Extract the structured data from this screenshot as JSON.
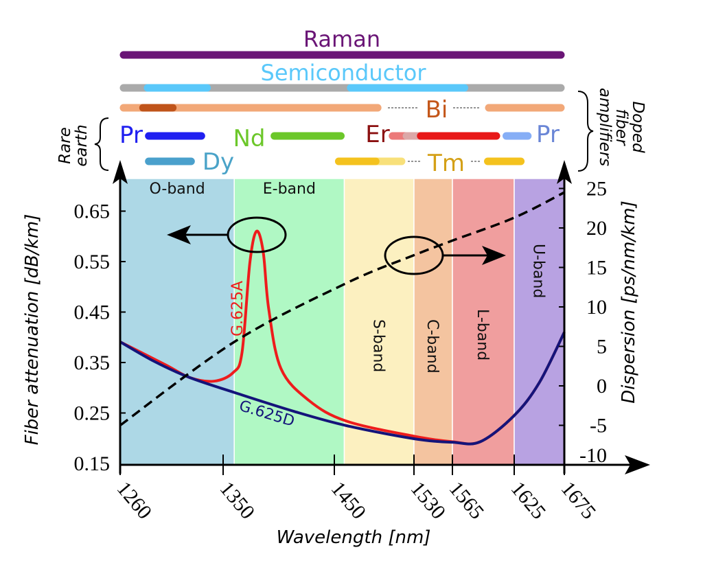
{
  "chart_data": {
    "type": "line",
    "xlabel": "Wavelength [nm]",
    "ylabel": "Fiber attenuation [dB/km]",
    "y2label": "Dispersion [ps/nm/km]",
    "x_ticks": [
      1260,
      1350,
      1450,
      1530,
      1565,
      1625,
      1675
    ],
    "x_tick_labels": [
      "1260",
      "1350",
      "1450",
      "1530",
      "1565",
      "1625",
      "1675"
    ],
    "x_scale": "non-uniform (ticks as printed)",
    "ylim": [
      0.15,
      0.7
    ],
    "y_ticks": [
      0.15,
      0.25,
      0.35,
      0.45,
      0.55,
      0.65
    ],
    "y_tick_labels": [
      "0.15",
      "0.25",
      "0.35",
      "0.45",
      "0.55",
      "0.65"
    ],
    "y2lim": [
      -10,
      26
    ],
    "y2_ticks": [
      -10,
      -5,
      0,
      5,
      10,
      15,
      20,
      25
    ],
    "y2_tick_labels": [
      "-10",
      "-5",
      "0",
      "5",
      "10",
      "15",
      "20",
      "25"
    ],
    "grid": false,
    "bands": [
      {
        "label": "O-band",
        "range": [
          1260,
          1360
        ],
        "color": "#add8e6",
        "vertical": false
      },
      {
        "label": "E-band",
        "range": [
          1360,
          1460
        ],
        "color": "#b0f8c4",
        "vertical": false
      },
      {
        "label": "S-band",
        "range": [
          1460,
          1530
        ],
        "color": "#fcf0c0",
        "vertical": true
      },
      {
        "label": "C-band",
        "range": [
          1530,
          1565
        ],
        "color": "#f4c4a0",
        "vertical": true
      },
      {
        "label": "L-band",
        "range": [
          1565,
          1625
        ],
        "color": "#f09e9e",
        "vertical": true
      },
      {
        "label": "U-band",
        "range": [
          1625,
          1675
        ],
        "color": "#b8a2e2",
        "vertical": true
      }
    ],
    "series": [
      {
        "name": "G.625A",
        "axis": "left",
        "color": "#ee1c1c",
        "style": "solid",
        "x": [
          1260,
          1300,
          1321,
          1342,
          1359,
          1367,
          1374,
          1380,
          1386,
          1391,
          1402,
          1427,
          1462,
          1530,
          1565,
          1592,
          1625,
          1650,
          1675
        ],
        "y": [
          0.391,
          0.345,
          0.32,
          0.313,
          0.33,
          0.37,
          0.547,
          0.61,
          0.57,
          0.456,
          0.338,
          0.275,
          0.234,
          0.204,
          0.193,
          0.193,
          0.245,
          0.31,
          0.41
        ]
      },
      {
        "name": "G.625D",
        "axis": "left",
        "color": "#14147a",
        "style": "solid",
        "x": [
          1260,
          1290,
          1321,
          1361,
          1414,
          1462,
          1530,
          1565,
          1592,
          1625,
          1650,
          1675
        ],
        "y": [
          0.391,
          0.352,
          0.32,
          0.29,
          0.253,
          0.225,
          0.199,
          0.192,
          0.193,
          0.245,
          0.31,
          0.41
        ]
      },
      {
        "axis": "right",
        "color": "#000000",
        "style": "dashed",
        "x": [
          1260,
          1361,
          1462,
          1529,
          1565,
          1625,
          1675
        ],
        "y": [
          -5.0,
          5.65,
          13.0,
          16.5,
          18.4,
          21.3,
          24.5
        ]
      }
    ],
    "amplifiers": {
      "raman": {
        "label": "Raman",
        "color": "#6a1576",
        "segments": [
          {
            "range": [
              1260,
              1675
            ],
            "color": "#6a1576"
          }
        ]
      },
      "semiconductor": {
        "label": "Semiconductor",
        "color": "#5ac8fa",
        "segments": [
          {
            "range": [
              1260,
              1675
            ],
            "color": "#aaaaaa"
          },
          {
            "range": [
              1281,
              1339
            ],
            "color": "#5ac8fa"
          },
          {
            "range": [
              1463,
              1580
            ],
            "color": "#5ac8fa"
          }
        ]
      },
      "bi": {
        "label": "Bi",
        "color": "#c4571a",
        "segments": [
          {
            "range": [
              1260,
              1497
            ],
            "color": "#f2a878"
          },
          {
            "range": [
              1597,
              1675
            ],
            "color": "#f2a878"
          },
          {
            "range": [
              1277,
              1309
            ],
            "color": "#c0541a"
          }
        ]
      },
      "pr_left": {
        "label": "Pr",
        "color": "#2020f0",
        "segments": [
          {
            "range": [
              1282,
              1334
            ],
            "color": "#2020f0"
          }
        ]
      },
      "nd": {
        "label": "Nd",
        "color": "#6cc72a",
        "segments": [
          {
            "range": [
              1393,
              1460
            ],
            "color": "#6cc72a"
          }
        ]
      },
      "er": {
        "label": "Er",
        "color": "#8b1010",
        "segments": [
          {
            "range": [
              1505,
              1533
            ],
            "color": "#ec7a7a"
          },
          {
            "range": [
              1519,
              1540
            ],
            "color": "#dca8a8"
          },
          {
            "range": [
              1533,
              1611
            ],
            "color": "#e81818"
          }
        ]
      },
      "pr_right": {
        "label": "Pr",
        "color": "#6a86d6",
        "segments": [
          {
            "range": [
              1614,
              1642
            ],
            "color": "#86aef6"
          }
        ]
      },
      "dy": {
        "label": "Dy",
        "color": "#4aa3c8",
        "segments": [
          {
            "range": [
              1282,
              1325
            ],
            "color": "#4aa0cc"
          }
        ]
      },
      "tm": {
        "label": "Tm",
        "color": "#d4a017",
        "segments": [
          {
            "range": [
              1451,
              1521
            ],
            "color": "#f8e07a"
          },
          {
            "range": [
              1451,
              1495
            ],
            "color": "#f4c21e"
          },
          {
            "range": [
              1596,
              1635
            ],
            "color": "#f4c21e"
          }
        ]
      }
    },
    "side_labels": {
      "rare_earth_1": "Rare",
      "rare_earth_2": "earth",
      "doped_1": "Doped",
      "doped_2": "fiber",
      "doped_3": "amplifiers"
    }
  }
}
